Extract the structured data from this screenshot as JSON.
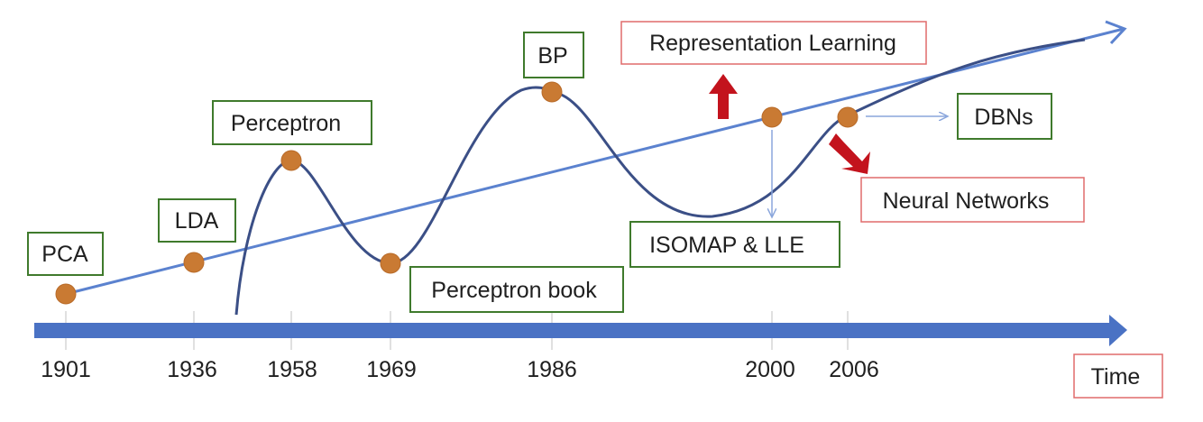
{
  "years": [
    "1901",
    "1936",
    "1958",
    "1969",
    "1986",
    "2000",
    "2006"
  ],
  "axis_label": "Time",
  "green_labels": [
    "PCA",
    "LDA",
    "Perceptron",
    "Perceptron book",
    "BP",
    "ISOMAP & LLE",
    "DBNs"
  ],
  "red_labels": [
    "Representation Learning",
    "Neural Networks"
  ],
  "colors": {
    "axis": "#4a72c4",
    "trend_line": "#5b82cf",
    "nn_curve": "#3b4f86",
    "milestone": "#c97a33",
    "green_border": "#3f7a2c",
    "red_border": "#e06b6b",
    "red_arrow": "#c3131d"
  }
}
